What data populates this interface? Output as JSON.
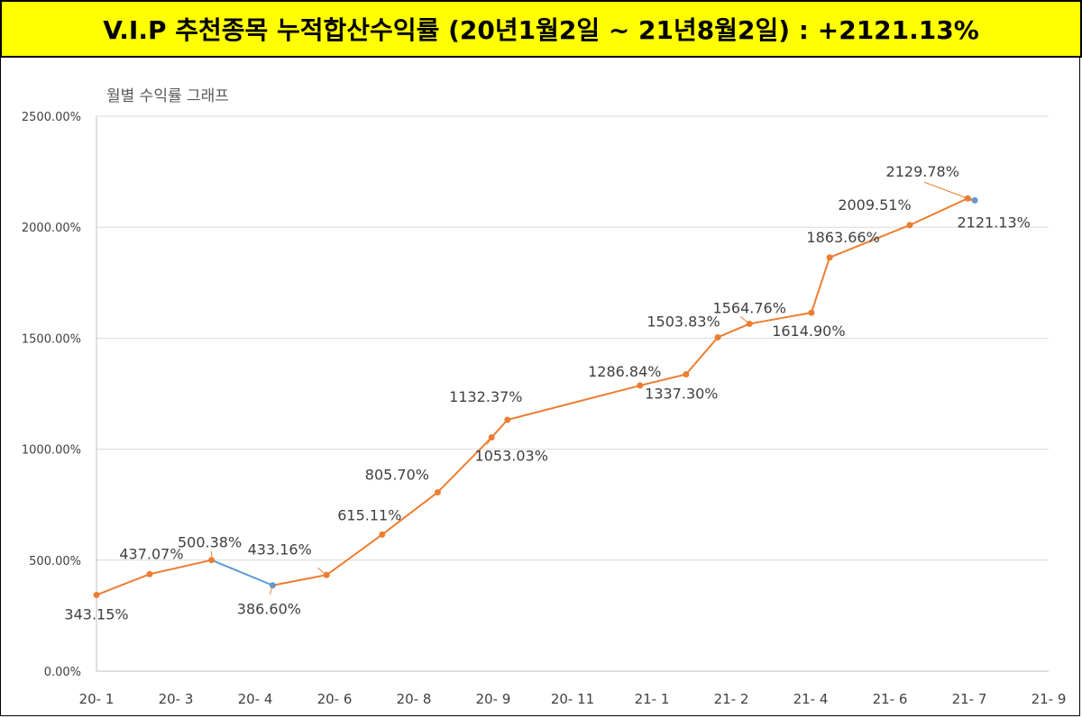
{
  "header": {
    "title": "V.I.P 추천종목 누적합산수익률 (20년1월2일 ~ 21년8월2일) : +2121.13%",
    "background": "#ffff00"
  },
  "chart_data": {
    "type": "line",
    "title": "월별 수익률 그래프",
    "xlabel": "",
    "ylabel": "",
    "ylim": [
      0,
      2500
    ],
    "grid": true,
    "x_tick_labels": [
      "20- 1",
      "20- 3",
      "20- 4",
      "20- 6",
      "20- 8",
      "20- 9",
      "20- 11",
      "21- 1",
      "21- 2",
      "21- 4",
      "21- 6",
      "21- 7",
      "21- 9"
    ],
    "y_tick_labels": [
      "0.00%",
      "500.00%",
      "1000.00%",
      "1500.00%",
      "2000.00%",
      "2500.00%"
    ],
    "series": [
      {
        "values": [
          {
            "x": 0.0,
            "y": 343.15,
            "label": "343.15%"
          },
          {
            "x": 0.67,
            "y": 437.07,
            "label": "437.07%"
          },
          {
            "x": 1.45,
            "y": 500.38,
            "label": "500.38%"
          },
          {
            "x": 2.22,
            "y": 386.6,
            "label": "386.60%"
          },
          {
            "x": 2.9,
            "y": 433.16,
            "label": "433.16%"
          },
          {
            "x": 3.6,
            "y": 615.11,
            "label": "615.11%"
          },
          {
            "x": 4.3,
            "y": 805.7,
            "label": "805.70%"
          },
          {
            "x": 4.98,
            "y": 1053.03,
            "label": "1053.03%"
          },
          {
            "x": 5.18,
            "y": 1132.37,
            "label": "1132.37%"
          },
          {
            "x": 6.85,
            "y": 1286.84,
            "label": "1286.84%"
          },
          {
            "x": 7.43,
            "y": 1337.3,
            "label": "1337.30%"
          },
          {
            "x": 7.83,
            "y": 1503.83,
            "label": "1503.83%"
          },
          {
            "x": 8.23,
            "y": 1564.76,
            "label": "1564.76%"
          },
          {
            "x": 9.01,
            "y": 1614.9,
            "label": "1614.90%"
          },
          {
            "x": 9.24,
            "y": 1863.66,
            "label": "1863.66%"
          },
          {
            "x": 10.25,
            "y": 2009.51,
            "label": "2009.51%"
          },
          {
            "x": 10.98,
            "y": 2129.78,
            "label": "2129.78%"
          },
          {
            "x": 11.07,
            "y": 2121.13,
            "label": "2121.13%"
          }
        ]
      }
    ],
    "colors": {
      "line": "#ed7d31",
      "loss_segment": "#5b9bd5",
      "grid": "#d9d9d9",
      "axis": "#bfbfbf"
    }
  }
}
